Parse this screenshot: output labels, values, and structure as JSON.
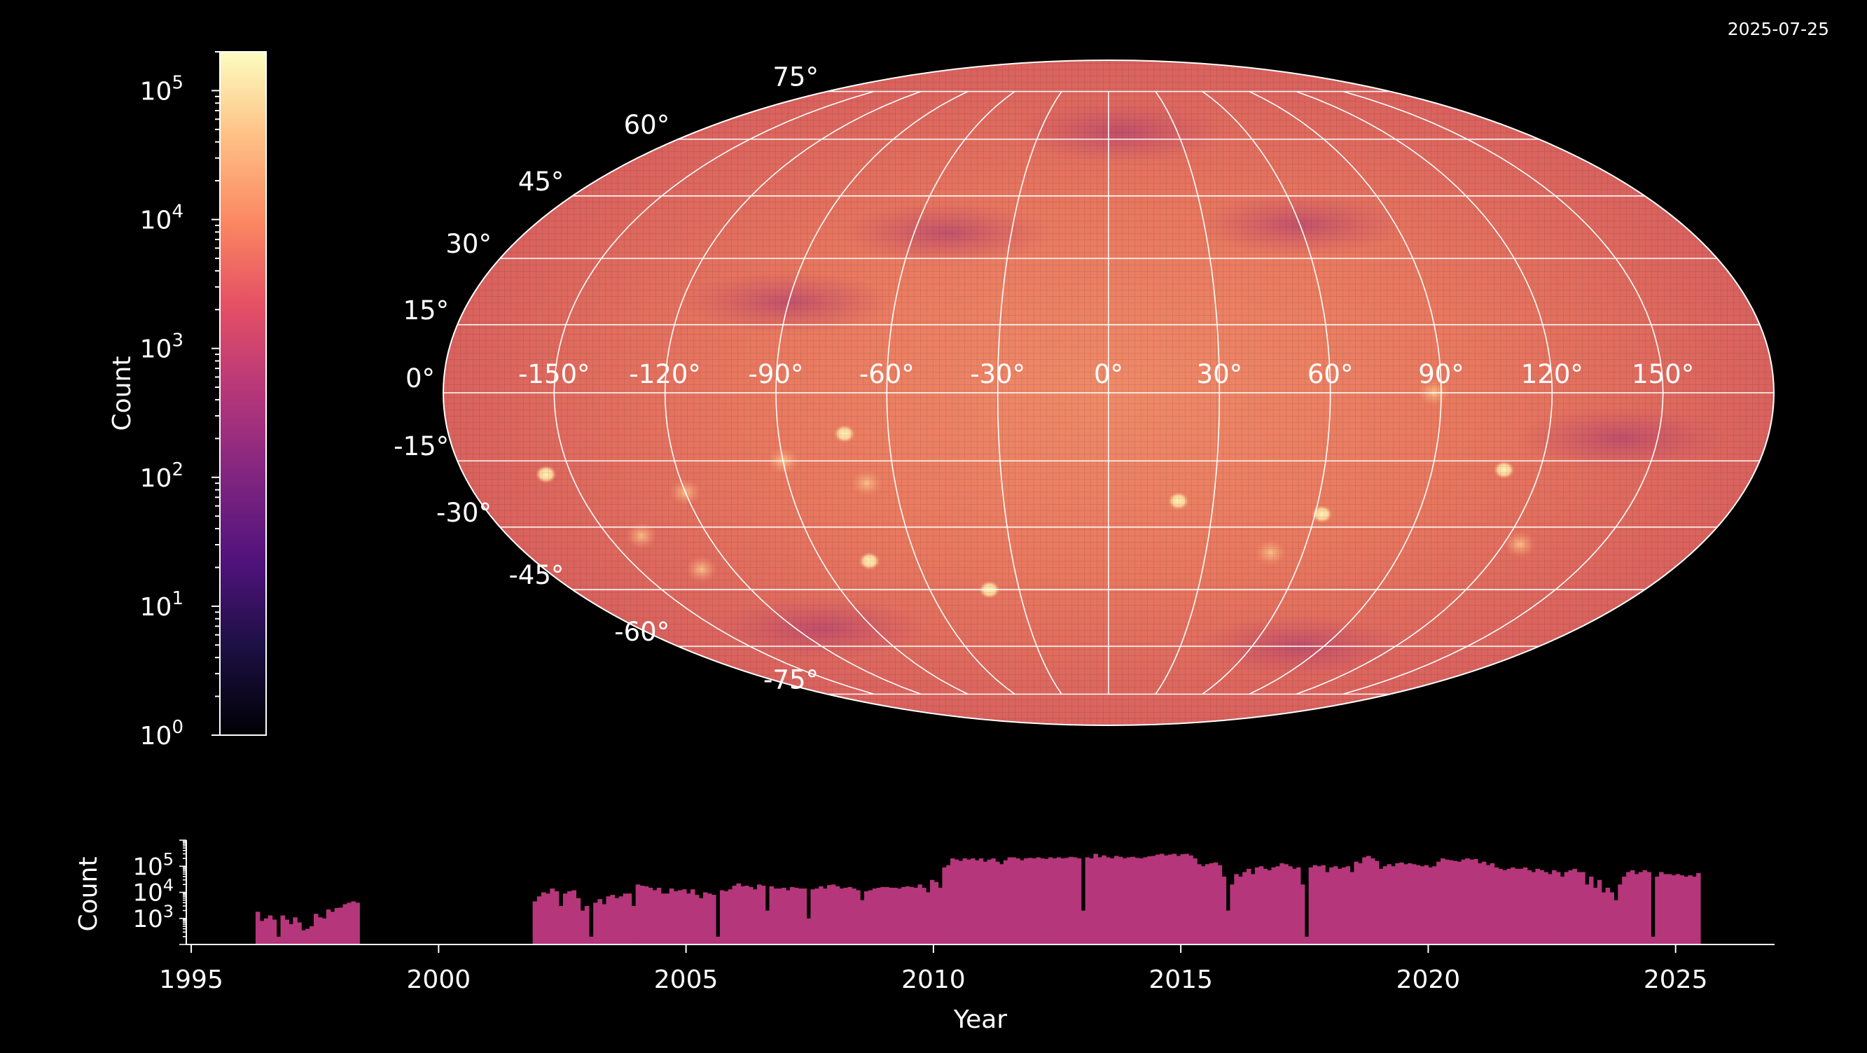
{
  "date_stamp": "2025-07-25",
  "colors": {
    "background": "#000000",
    "foreground": "#ffffff",
    "bar_fill": "#b5367a",
    "map_base": "#e4725f",
    "colormap": "magma"
  },
  "chart_data": [
    {
      "type": "heatmap",
      "projection": "mollweide",
      "grid": true,
      "lon_tick_labels": [
        "-150°",
        "-120°",
        "-90°",
        "-60°",
        "-30°",
        "0°",
        "30°",
        "60°",
        "90°",
        "120°",
        "150°"
      ],
      "lat_tick_labels": [
        "75°",
        "60°",
        "45°",
        "30°",
        "15°",
        "0°",
        "-15°",
        "-30°",
        "-45°",
        "-60°",
        "-75°"
      ],
      "lon_ticks": [
        -150,
        -120,
        -90,
        -60,
        -30,
        0,
        30,
        60,
        90,
        120,
        150
      ],
      "lat_ticks": [
        75,
        60,
        45,
        30,
        15,
        0,
        -15,
        -30,
        -45,
        -60,
        -75
      ],
      "hotspots": [
        {
          "lon": -157,
          "lat": -18,
          "level": "high"
        },
        {
          "lon": -140,
          "lat": -32,
          "level": "medium"
        },
        {
          "lon": -130,
          "lat": -40,
          "level": "medium"
        },
        {
          "lon": -90,
          "lat": -15,
          "level": "medium"
        },
        {
          "lon": -72,
          "lat": -9,
          "level": "high"
        },
        {
          "lon": -75,
          "lat": -38,
          "level": "high"
        },
        {
          "lon": -68,
          "lat": -20,
          "level": "medium"
        },
        {
          "lon": -40,
          "lat": -45,
          "level": "high"
        },
        {
          "lon": 20,
          "lat": -24,
          "level": "high"
        },
        {
          "lon": 62,
          "lat": -27,
          "level": "high"
        },
        {
          "lon": 110,
          "lat": -17,
          "level": "high"
        },
        {
          "lon": 125,
          "lat": -34,
          "level": "medium"
        },
        {
          "lon": 88,
          "lat": 0,
          "level": "medium"
        },
        {
          "lon": -120,
          "lat": -22,
          "level": "medium"
        },
        {
          "lon": 50,
          "lat": -36,
          "level": "medium"
        }
      ],
      "low_regions": [
        {
          "lon": 5,
          "lat": 62,
          "level": "low"
        },
        {
          "lon": -90,
          "lat": 20,
          "level": "low"
        },
        {
          "lon": -50,
          "lat": 36,
          "level": "low"
        },
        {
          "lon": 60,
          "lat": 38,
          "level": "low"
        },
        {
          "lon": -110,
          "lat": -55,
          "level": "low"
        },
        {
          "lon": 80,
          "lat": -60,
          "level": "low"
        },
        {
          "lon": 140,
          "lat": -10,
          "level": "low"
        }
      ]
    },
    {
      "type": "colorbar",
      "ylabel": "Count",
      "scale": "log",
      "ylim": [
        1,
        200000
      ],
      "tick_exponents": [
        "0",
        "1",
        "2",
        "3",
        "4",
        "5"
      ],
      "tick_base": "10"
    },
    {
      "type": "bar",
      "xlabel": "Year",
      "ylabel": "Count",
      "yscale": "log",
      "xlim": [
        1994.9,
        2027
      ],
      "ylim": [
        100,
        1000000
      ],
      "x_ticks": [
        1995,
        2000,
        2005,
        2010,
        2015,
        2020,
        2025
      ],
      "x_tick_labels": [
        "1995",
        "2000",
        "2005",
        "2010",
        "2015",
        "2020",
        "2025"
      ],
      "y_tick_exponents": [
        "3",
        "4",
        "5"
      ],
      "y_tick_base": "10",
      "bin_width_years": 0.0833,
      "segments": [
        {
          "start": 1996.3,
          "end": 1998.4,
          "values": [
            1800,
            800,
            1000,
            1300,
            900,
            200,
            1300,
            900,
            600,
            1100,
            700,
            350,
            400,
            500,
            1500,
            1100,
            1000,
            2200,
            1800,
            2500,
            2600,
            3500,
            4000,
            4500,
            4000
          ]
        },
        {
          "start": 2001.9,
          "end": 2003.3,
          "values": [
            4500,
            7000,
            10000,
            9000,
            14000,
            11000,
            3000,
            9000,
            11000,
            12000,
            6000,
            2000,
            3000,
            200,
            4000,
            5500
          ]
        },
        {
          "start": 2003.3,
          "end": 2005.6,
          "values": [
            3500,
            7000,
            8000,
            6000,
            7000,
            9000,
            9000,
            3000,
            20000,
            18000,
            17000,
            15000,
            12000,
            15000,
            9000,
            9000,
            14000,
            11000,
            12000,
            13000,
            9000,
            13000,
            8000,
            6000,
            10000,
            9000,
            8000
          ]
        },
        {
          "start": 2005.6,
          "end": 2009.6,
          "values": [
            200,
            12000,
            11000,
            13000,
            18000,
            22000,
            17000,
            18000,
            16000,
            13000,
            20000,
            18000,
            2000,
            17000,
            14000,
            14000,
            15000,
            12000,
            16000,
            15000,
            14000,
            14000,
            1000,
            13000,
            14000,
            17000,
            14000,
            19000,
            20000,
            17000,
            14000,
            15000,
            16000,
            14000,
            12000,
            5000,
            11000,
            12000,
            14000,
            15000,
            16000,
            16000,
            15000,
            15000,
            14000,
            16000,
            17000,
            16000
          ]
        },
        {
          "start": 2009.6,
          "end": 2012.9,
          "values": [
            15000,
            20000,
            15000,
            10000,
            30000,
            25000,
            15000,
            90000,
            110000,
            200000,
            180000,
            160000,
            200000,
            180000,
            200000,
            170000,
            200000,
            150000,
            180000,
            200000,
            150000,
            120000,
            170000,
            220000,
            220000,
            200000,
            170000,
            200000,
            210000,
            200000,
            220000,
            200000,
            190000,
            220000,
            200000,
            220000,
            200000,
            210000,
            230000,
            220000
          ]
        },
        {
          "start": 2012.9,
          "end": 2017.5,
          "values": [
            200000,
            2000,
            220000,
            200000,
            300000,
            220000,
            260000,
            220000,
            200000,
            250000,
            230000,
            200000,
            220000,
            230000,
            210000,
            200000,
            220000,
            240000,
            250000,
            280000,
            300000,
            260000,
            280000,
            300000,
            250000,
            290000,
            300000,
            260000,
            200000,
            120000,
            100000,
            120000,
            130000,
            140000,
            110000,
            40000,
            2000,
            20000,
            50000,
            40000,
            60000,
            80000,
            50000,
            90000,
            100000,
            80000,
            70000,
            90000,
            100000,
            130000,
            120000,
            100000,
            80000,
            90000,
            20000
          ]
        },
        {
          "start": 2017.5,
          "end": 2024.5,
          "values": [
            200,
            90000,
            110000,
            100000,
            110000,
            60000,
            90000,
            100000,
            80000,
            90000,
            100000,
            60000,
            150000,
            130000,
            220000,
            250000,
            200000,
            160000,
            80000,
            100000,
            120000,
            100000,
            130000,
            140000,
            120000,
            130000,
            120000,
            110000,
            100000,
            110000,
            90000,
            100000,
            150000,
            200000,
            180000,
            170000,
            160000,
            150000,
            180000,
            200000,
            180000,
            190000,
            130000,
            150000,
            110000,
            130000,
            90000,
            80000,
            70000,
            80000,
            90000,
            80000,
            80000,
            90000,
            70000,
            60000,
            80000,
            70000,
            60000,
            50000,
            70000,
            60000,
            40000,
            60000,
            70000,
            80000,
            60000,
            60000,
            20000,
            40000,
            15000,
            30000,
            10000,
            15000,
            10000,
            5000,
            20000,
            40000,
            60000,
            70000,
            50000,
            60000,
            70000,
            60000
          ]
        },
        {
          "start": 2024.5,
          "end": 2025.5,
          "values": [
            200,
            40000,
            60000,
            50000,
            50000,
            45000,
            50000,
            45000,
            40000,
            45000,
            40000,
            55000
          ]
        }
      ]
    }
  ]
}
